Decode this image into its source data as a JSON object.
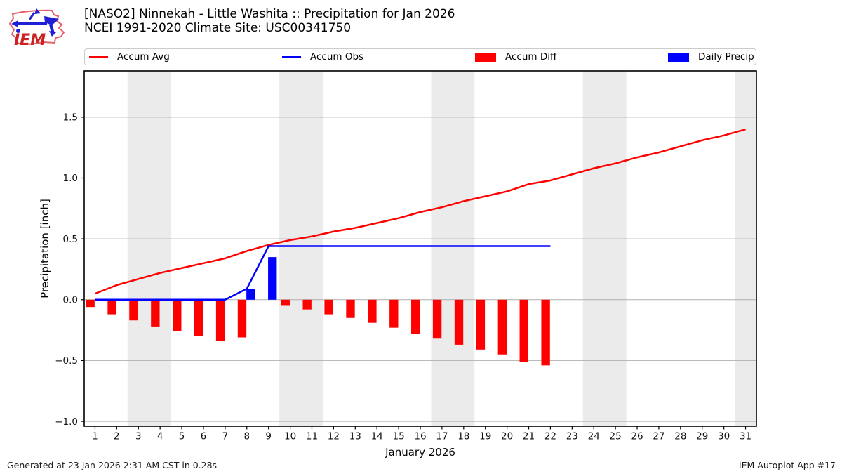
{
  "header": {
    "logo_text": "IEM",
    "title_line1": "[NASO2] Ninnekah - Little Washita :: Precipitation for Jan 2026",
    "title_line2": "NCEI 1991-2020 Climate Site: USC00341750"
  },
  "legend": {
    "items": [
      {
        "label": "Accum Avg",
        "type": "line",
        "color": "#ff0000"
      },
      {
        "label": "Accum Obs",
        "type": "line",
        "color": "#0000ff"
      },
      {
        "label": "Accum Diff",
        "type": "patch",
        "color": "#ff0000"
      },
      {
        "label": "Daily Precip",
        "type": "patch",
        "color": "#0000ff"
      }
    ]
  },
  "chart_data": {
    "type": "line+bar",
    "title": "[NASO2] Ninnekah - Little Washita :: Precipitation for Jan 2026",
    "subtitle": "NCEI 1991-2020 Climate Site: USC00341750",
    "xlabel": "January 2026",
    "ylabel": "Precipitation [inch]",
    "xlim": [
      0.5,
      31.5
    ],
    "ylim": [
      -1.04,
      1.88
    ],
    "yticks": [
      -1.0,
      -0.5,
      0.0,
      0.5,
      1.0,
      1.5
    ],
    "ytick_labels": [
      "−1.0",
      "−0.5",
      "0.0",
      "0.5",
      "1.0",
      "1.5"
    ],
    "categories": [
      1,
      2,
      3,
      4,
      5,
      6,
      7,
      8,
      9,
      10,
      11,
      12,
      13,
      14,
      15,
      16,
      17,
      18,
      19,
      20,
      21,
      22,
      23,
      24,
      25,
      26,
      27,
      28,
      29,
      30,
      31
    ],
    "weekend_bands": [
      [
        2.5,
        4.5
      ],
      [
        9.5,
        11.5
      ],
      [
        16.5,
        18.5
      ],
      [
        23.5,
        25.5
      ],
      [
        30.5,
        31.5
      ]
    ],
    "grid": true,
    "legend_position": "top",
    "series": [
      {
        "name": "Accum Avg",
        "type": "line",
        "color": "#ff0000",
        "x": [
          1,
          2,
          3,
          4,
          5,
          6,
          7,
          8,
          9,
          10,
          11,
          12,
          13,
          14,
          15,
          16,
          17,
          18,
          19,
          20,
          21,
          22,
          23,
          24,
          25,
          26,
          27,
          28,
          29,
          30,
          31
        ],
        "values": [
          0.05,
          0.12,
          0.17,
          0.22,
          0.26,
          0.3,
          0.34,
          0.4,
          0.45,
          0.49,
          0.52,
          0.56,
          0.59,
          0.63,
          0.67,
          0.72,
          0.76,
          0.81,
          0.85,
          0.89,
          0.95,
          0.98,
          1.03,
          1.08,
          1.12,
          1.17,
          1.21,
          1.26,
          1.31,
          1.35,
          1.4
        ]
      },
      {
        "name": "Accum Obs",
        "type": "line",
        "color": "#0000ff",
        "x": [
          1,
          2,
          3,
          4,
          5,
          6,
          7,
          8,
          9,
          10,
          11,
          12,
          13,
          14,
          15,
          16,
          17,
          18,
          19,
          20,
          21,
          22
        ],
        "values": [
          0.0,
          0.0,
          0.0,
          0.0,
          0.0,
          0.0,
          0.0,
          0.09,
          0.44,
          0.44,
          0.44,
          0.44,
          0.44,
          0.44,
          0.44,
          0.44,
          0.44,
          0.44,
          0.44,
          0.44,
          0.44,
          0.44
        ]
      },
      {
        "name": "Accum Diff",
        "type": "bar",
        "color": "#ff0000",
        "x": [
          1,
          2,
          3,
          4,
          5,
          6,
          7,
          8,
          9,
          10,
          11,
          12,
          13,
          14,
          15,
          16,
          17,
          18,
          19,
          20,
          21,
          22
        ],
        "values": [
          -0.06,
          -0.12,
          -0.17,
          -0.22,
          -0.26,
          -0.3,
          -0.34,
          -0.31,
          0.0,
          -0.05,
          -0.08,
          -0.12,
          -0.15,
          -0.19,
          -0.23,
          -0.28,
          -0.32,
          -0.37,
          -0.41,
          -0.45,
          -0.51,
          -0.54
        ]
      },
      {
        "name": "Daily Precip",
        "type": "bar",
        "color": "#0000ff",
        "x": [
          8,
          9
        ],
        "values": [
          0.09,
          0.35
        ]
      }
    ],
    "styles": {
      "band_color": "#ebebeb",
      "grid_color": "#b0b0b0",
      "axis_color": "#000000",
      "tick_label_color": "#111111"
    }
  },
  "footer": {
    "left": "Generated at 23 Jan 2026 2:31 AM CST in 0.28s",
    "right": "IEM Autoplot App #17"
  }
}
